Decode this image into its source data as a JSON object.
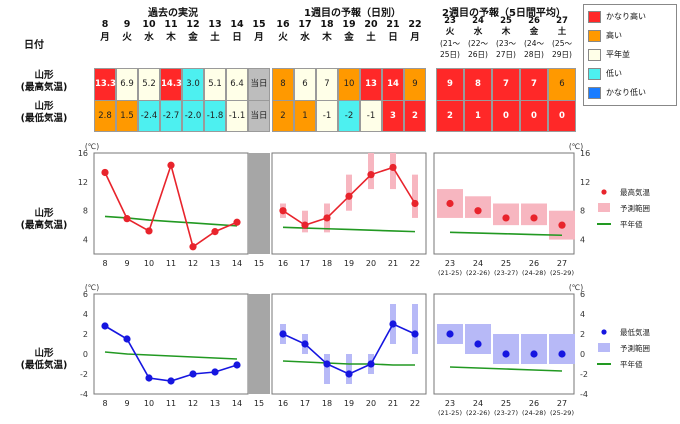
{
  "sections": {
    "past": "過去の実況",
    "week1": "1週目の予報（日別）",
    "week2": "2週目の予報（5日間平均）"
  },
  "labels": {
    "date": "日付",
    "row_max": "山形\n(最高気温)",
    "row_min": "山形\n(最低気温)",
    "chart_max": "山形\n(最高気温)",
    "chart_min": "山形\n(最低気温)",
    "today": "当日",
    "unit": "(℃)"
  },
  "legend_categories": [
    {
      "label": "かなり高い",
      "color": "#ff2828"
    },
    {
      "label": "高い",
      "color": "#ff9900"
    },
    {
      "label": "平年並",
      "color": "#ffffe8"
    },
    {
      "label": "低い",
      "color": "#4df0f0"
    },
    {
      "label": "かなり低い",
      "color": "#1a7cff"
    }
  ],
  "colors": {
    "past_max": "#e8242c",
    "past_min": "#1616e0",
    "normal": "#229922",
    "range_max": "#f7b6c0",
    "range_min": "#b7b9f7",
    "today_bar": "#a6a6a6"
  },
  "days": [
    {
      "d": "8",
      "w": "月"
    },
    {
      "d": "9",
      "w": "火"
    },
    {
      "d": "10",
      "w": "水"
    },
    {
      "d": "11",
      "w": "木"
    },
    {
      "d": "12",
      "w": "金"
    },
    {
      "d": "13",
      "w": "土"
    },
    {
      "d": "14",
      "w": "日"
    },
    {
      "d": "15",
      "w": "月"
    },
    {
      "d": "16",
      "w": "火"
    },
    {
      "d": "17",
      "w": "水"
    },
    {
      "d": "18",
      "w": "木"
    },
    {
      "d": "19",
      "w": "金"
    },
    {
      "d": "20",
      "w": "土"
    },
    {
      "d": "21",
      "w": "日"
    },
    {
      "d": "22",
      "w": "月"
    }
  ],
  "week2_days": [
    {
      "d": "23",
      "w": "火",
      "r1": "(21～",
      "r2": "25日)"
    },
    {
      "d": "24",
      "w": "水",
      "r1": "(22～",
      "r2": "26日)"
    },
    {
      "d": "25",
      "w": "木",
      "r1": "(23～",
      "r2": "27日)"
    },
    {
      "d": "26",
      "w": "金",
      "r1": "(24～",
      "r2": "28日)"
    },
    {
      "d": "27",
      "w": "土",
      "r1": "(25～",
      "r2": "29日)"
    }
  ],
  "table_max": [
    {
      "v": "13.3",
      "c": "#ff2828"
    },
    {
      "v": "6.9",
      "c": "#ffffe8"
    },
    {
      "v": "5.2",
      "c": "#ffffe8"
    },
    {
      "v": "14.3",
      "c": "#ff2828"
    },
    {
      "v": "3.0",
      "c": "#4df0f0"
    },
    {
      "v": "5.1",
      "c": "#ffffe8"
    },
    {
      "v": "6.4",
      "c": "#ffffe8"
    },
    {
      "v": "当日",
      "c": "#bdbdbd"
    },
    {
      "v": "8",
      "c": "#ff9900"
    },
    {
      "v": "6",
      "c": "#ffffe8"
    },
    {
      "v": "7",
      "c": "#ffffe8"
    },
    {
      "v": "10",
      "c": "#ff9900"
    },
    {
      "v": "13",
      "c": "#ff2828"
    },
    {
      "v": "14",
      "c": "#ff2828"
    },
    {
      "v": "9",
      "c": "#ff9900"
    }
  ],
  "table_min": [
    {
      "v": "2.8",
      "c": "#ff9900"
    },
    {
      "v": "1.5",
      "c": "#ff9900"
    },
    {
      "v": "-2.4",
      "c": "#4df0f0"
    },
    {
      "v": "-2.7",
      "c": "#4df0f0"
    },
    {
      "v": "-2.0",
      "c": "#4df0f0"
    },
    {
      "v": "-1.8",
      "c": "#4df0f0"
    },
    {
      "v": "-1.1",
      "c": "#ffffe8"
    },
    {
      "v": "当日",
      "c": "#bdbdbd"
    },
    {
      "v": "2",
      "c": "#ff9900"
    },
    {
      "v": "1",
      "c": "#ff9900"
    },
    {
      "v": "-1",
      "c": "#ffffe8"
    },
    {
      "v": "-2",
      "c": "#4df0f0"
    },
    {
      "v": "-1",
      "c": "#ffffe8"
    },
    {
      "v": "3",
      "c": "#ff2828"
    },
    {
      "v": "2",
      "c": "#ff2828"
    }
  ],
  "table_w2_max": [
    {
      "v": "9",
      "c": "#ff2828"
    },
    {
      "v": "8",
      "c": "#ff2828"
    },
    {
      "v": "7",
      "c": "#ff2828"
    },
    {
      "v": "7",
      "c": "#ff2828"
    },
    {
      "v": "6",
      "c": "#ff9900"
    }
  ],
  "table_w2_min": [
    {
      "v": "2",
      "c": "#ff2828"
    },
    {
      "v": "1",
      "c": "#ff2828"
    },
    {
      "v": "0",
      "c": "#ff2828"
    },
    {
      "v": "0",
      "c": "#ff2828"
    },
    {
      "v": "0",
      "c": "#ff2828"
    }
  ],
  "chart_data": [
    {
      "type": "line",
      "title": "山形(最高気温)",
      "ylabel": "(℃)",
      "ylim": [
        2,
        16
      ],
      "yticks": [
        4,
        8,
        12,
        16
      ],
      "x_daily": [
        "8",
        "9",
        "10",
        "11",
        "12",
        "13",
        "14",
        "15",
        "16",
        "17",
        "18",
        "19",
        "20",
        "21",
        "22"
      ],
      "x_week2": [
        "23",
        "24",
        "25",
        "26",
        "27"
      ],
      "x_week2_ranges": [
        "(21-25)",
        "(22-26)",
        "(23-27)",
        "(24-28)",
        "(25-29)"
      ],
      "observed": [
        13.3,
        6.9,
        5.2,
        14.3,
        3.0,
        5.1,
        6.4
      ],
      "forecast": [
        8,
        6,
        7,
        10,
        13,
        14,
        9
      ],
      "forecast_range": [
        [
          7,
          9
        ],
        [
          5,
          8
        ],
        [
          5,
          9
        ],
        [
          8,
          13
        ],
        [
          11,
          16
        ],
        [
          11,
          16
        ],
        [
          7,
          13
        ]
      ],
      "normal_daily": [
        7.2,
        7.0,
        6.7,
        6.5,
        6.3,
        6.1,
        5.9,
        5.8,
        5.7,
        5.6,
        5.5,
        5.4,
        5.3,
        5.2,
        5.1
      ],
      "week2_forecast": [
        9,
        8,
        7,
        7,
        6
      ],
      "week2_range": [
        [
          7,
          11
        ],
        [
          7,
          10
        ],
        [
          6,
          9
        ],
        [
          6,
          9
        ],
        [
          4,
          8
        ]
      ],
      "week2_normal": [
        5.0,
        4.9,
        4.8,
        4.7,
        4.6
      ],
      "legend": [
        "最高気温",
        "予測範囲",
        "平年値"
      ]
    },
    {
      "type": "line",
      "title": "山形(最低気温)",
      "ylabel": "(℃)",
      "ylim": [
        -4,
        6
      ],
      "yticks": [
        -4,
        -2,
        0,
        2,
        4,
        6
      ],
      "x_daily": [
        "8",
        "9",
        "10",
        "11",
        "12",
        "13",
        "14",
        "15",
        "16",
        "17",
        "18",
        "19",
        "20",
        "21",
        "22"
      ],
      "x_week2": [
        "23",
        "24",
        "25",
        "26",
        "27"
      ],
      "x_week2_ranges": [
        "(21-25)",
        "(22-26)",
        "(23-27)",
        "(24-28)",
        "(25-29)"
      ],
      "observed": [
        2.8,
        1.5,
        -2.4,
        -2.7,
        -2.0,
        -1.8,
        -1.1
      ],
      "forecast": [
        2,
        1,
        -1,
        -2,
        -1,
        3,
        2
      ],
      "forecast_range": [
        [
          1,
          3
        ],
        [
          0,
          2
        ],
        [
          -3,
          0
        ],
        [
          -3,
          0
        ],
        [
          -2,
          0
        ],
        [
          1,
          5
        ],
        [
          0,
          5
        ]
      ],
      "normal_daily": [
        0.2,
        0.0,
        -0.1,
        -0.2,
        -0.3,
        -0.4,
        -0.5,
        -0.6,
        -0.7,
        -0.8,
        -0.9,
        -1.0,
        -1.0,
        -1.1,
        -1.1
      ],
      "week2_forecast": [
        2,
        1,
        0,
        0,
        0
      ],
      "week2_range": [
        [
          1,
          3
        ],
        [
          0,
          3
        ],
        [
          -1,
          2
        ],
        [
          -1,
          2
        ],
        [
          -1,
          2
        ]
      ],
      "week2_normal": [
        -1.3,
        -1.4,
        -1.5,
        -1.6,
        -1.7
      ],
      "legend": [
        "最低気温",
        "予測範囲",
        "平年値"
      ]
    }
  ]
}
